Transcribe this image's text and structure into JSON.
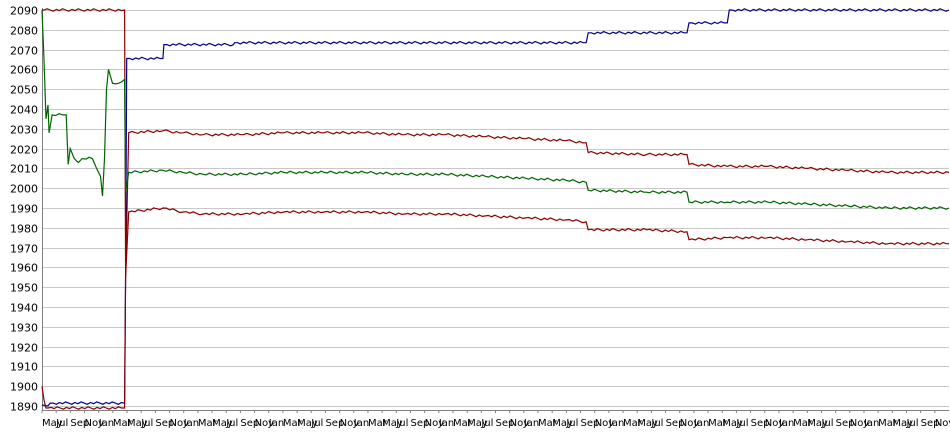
{
  "chart_data": {
    "type": "line",
    "title": "",
    "xlabel": "",
    "ylabel": "",
    "ylim": [
      1888,
      2091
    ],
    "y_ticks": [
      1890,
      1900,
      1910,
      1920,
      1930,
      1940,
      1950,
      1960,
      1970,
      1980,
      1990,
      2000,
      2010,
      2020,
      2030,
      2040,
      2050,
      2060,
      2070,
      2080,
      2090
    ],
    "y_tick_labels": [
      "1890",
      "1900",
      "1910",
      "1920",
      "1930",
      "1940",
      "1950",
      "1960",
      "1970",
      "1980",
      "1990",
      "2000",
      "2010",
      "2020",
      "2030",
      "2040",
      "2050",
      "2060",
      "2070",
      "2080",
      "2090"
    ],
    "grid": true,
    "legend": "none",
    "x_tick_labels": [
      "May",
      "Jul",
      "Sep",
      "Nov",
      "Jan",
      "Mar",
      "May",
      "Jul",
      "Sep",
      "Nov",
      "Jan",
      "Mar",
      "May",
      "Jul",
      "Sep",
      "Nov",
      "Jan",
      "Mar",
      "May",
      "Jul",
      "Sep",
      "Nov",
      "Jan",
      "Mar",
      "May",
      "Jul",
      "Sep",
      "Nov",
      "Jan",
      "Mar",
      "May",
      "Jul",
      "Sep",
      "Nov",
      "Jan",
      "Mar",
      "May",
      "Jul",
      "Sep",
      "Nov",
      "Jan",
      "Mar",
      "May",
      "Jul",
      "Sep",
      "Nov",
      "Jan",
      "Mar",
      "May",
      "Jul",
      "Sep",
      "Nov",
      "Jan",
      "Mar",
      "May",
      "Jul",
      "Sep",
      "Nov",
      "Jan",
      "Mar",
      "May",
      "Jul",
      "Sep",
      "Nov"
    ],
    "x_range": [
      0,
      45
    ],
    "series": [
      {
        "color": "#00008b",
        "x": [
          0,
          0.3,
          0.4,
          4.1,
          4.15,
          4.2,
          6,
          6.05,
          9.5,
          9.55,
          27,
          27.1,
          32,
          32.1,
          34,
          34.1,
          45
        ],
        "values": [
          1890.5,
          1890,
          1891.5,
          1891.5,
          1958,
          2065.5,
          2065.5,
          2072.5,
          2072.5,
          2073.5,
          2073.5,
          2078.5,
          2078.5,
          2083.5,
          2083.5,
          2090,
          2090
        ]
      },
      {
        "color": "#8b0000",
        "x": [
          0,
          0.05,
          0.1,
          4.1,
          4.15,
          4.3,
          6,
          7,
          8,
          10,
          12,
          14,
          16,
          18,
          20,
          22,
          24,
          26,
          27,
          27.1,
          30,
          32,
          32.1,
          34,
          36,
          38,
          40,
          42,
          45
        ],
        "values": [
          2090,
          2090,
          2090,
          2090,
          1956,
          2028,
          2029,
          2028,
          2027,
          2027,
          2028,
          2028,
          2028,
          2027,
          2027,
          2026,
          2025,
          2024,
          2023,
          2018,
          2017,
          2017,
          2012,
          2011,
          2011,
          2010,
          2009,
          2008,
          2008
        ]
      },
      {
        "color": "#006400",
        "x": [
          0,
          0.1,
          0.2,
          0.3,
          0.35,
          0.5,
          1.2,
          1.3,
          1.4,
          1.6,
          1.8,
          2,
          2.5,
          2.9,
          3,
          3.1,
          3.2,
          3.3,
          3.5,
          3.8,
          4.1,
          4.15,
          4.3,
          6,
          7,
          8,
          10,
          12,
          14,
          16,
          18,
          20,
          22,
          24,
          26,
          27,
          27.1,
          30,
          32,
          32.1,
          34,
          36,
          38,
          40,
          42,
          45
        ],
        "values": [
          2090,
          2065,
          2035,
          2042,
          2028,
          2037,
          2037,
          2012,
          2020,
          2015,
          2013,
          2015,
          2015,
          2006,
          1996,
          2015,
          2050,
          2060,
          2053,
          2053,
          2055,
          1998,
          2008,
          2009,
          2008,
          2007,
          2007,
          2008,
          2008,
          2008,
          2007,
          2007,
          2006,
          2005,
          2004,
          2003,
          1999,
          1998,
          1998,
          1993,
          1993,
          1993,
          1992,
          1991,
          1990,
          1990
        ]
      },
      {
        "color": "#8b0000",
        "x": [
          0,
          0.1,
          0.2,
          0.3,
          4.1,
          4.15,
          4.3,
          6,
          7,
          8,
          10,
          12,
          14,
          16,
          18,
          20,
          22,
          24,
          26,
          27,
          27.1,
          30,
          32,
          32.1,
          34,
          36,
          38,
          40,
          42,
          45
        ],
        "values": [
          1900,
          1893,
          1889,
          1889,
          1889,
          1955,
          1988,
          1990,
          1988,
          1987,
          1987,
          1988,
          1988,
          1988,
          1987,
          1987,
          1986,
          1985,
          1984,
          1983,
          1979,
          1979,
          1978,
          1974,
          1975,
          1975,
          1974,
          1973,
          1972,
          1972
        ]
      }
    ]
  }
}
